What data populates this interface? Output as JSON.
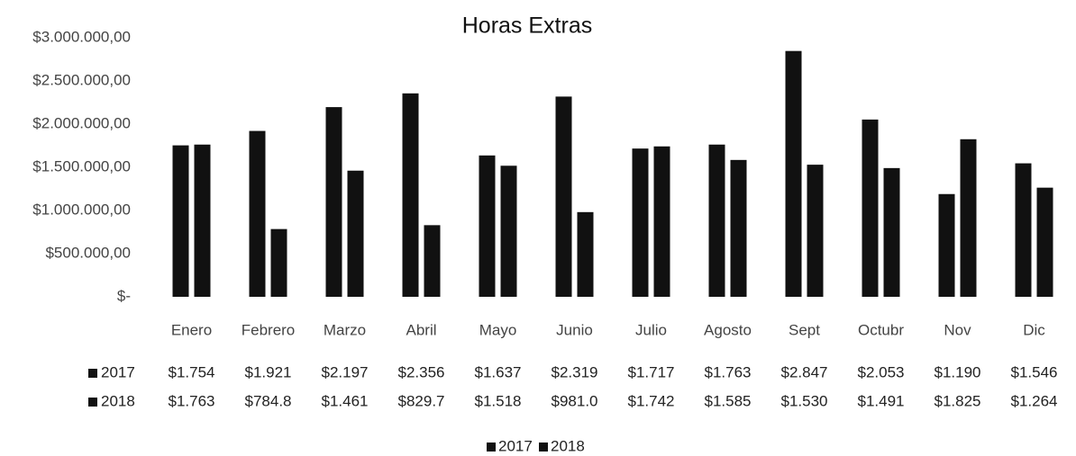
{
  "chart_data": {
    "type": "bar",
    "title": "Horas Extras",
    "categories": [
      "Enero",
      "Febrero",
      "Marzo",
      "Abril",
      "Mayo",
      "Junio",
      "Julio",
      "Agosto",
      "Sept",
      "Octubr",
      "Nov",
      "Dic"
    ],
    "series": [
      {
        "name": "2017",
        "color": "#111111",
        "values": [
          1754000,
          1921000,
          2197000,
          2356000,
          1637000,
          2319000,
          1717000,
          1763000,
          2847000,
          2053000,
          1190000,
          1546000
        ],
        "value_labels": [
          "$1.754",
          "$1.921",
          "$2.197",
          "$2.356",
          "$1.637",
          "$2.319",
          "$1.717",
          "$1.763",
          "$2.847",
          "$2.053",
          "$1.190",
          "$1.546"
        ]
      },
      {
        "name": "2018",
        "color": "#111111",
        "values": [
          1763000,
          784800,
          1461000,
          829700,
          1518000,
          981000,
          1742000,
          1585000,
          1530000,
          1491000,
          1825000,
          1264000
        ],
        "value_labels": [
          "$1.763",
          "$784.8",
          "$1.461",
          "$829.7",
          "$1.518",
          "$981.0",
          "$1.742",
          "$1.585",
          "$1.530",
          "$1.491",
          "$1.825",
          "$1.264"
        ]
      }
    ],
    "ylim": [
      0,
      3000000
    ],
    "yticks": [
      {
        "value": 0,
        "label": "$-"
      },
      {
        "value": 500000,
        "label": "$500.000,00"
      },
      {
        "value": 1000000,
        "label": "$1.000.000,00"
      },
      {
        "value": 1500000,
        "label": "$1.500.000,00"
      },
      {
        "value": 2000000,
        "label": "$2.000.000,00"
      },
      {
        "value": 2500000,
        "label": "$2.500.000,00"
      },
      {
        "value": 3000000,
        "label": "$3.000.000,00"
      }
    ],
    "grid": false,
    "legend": "bottom"
  }
}
